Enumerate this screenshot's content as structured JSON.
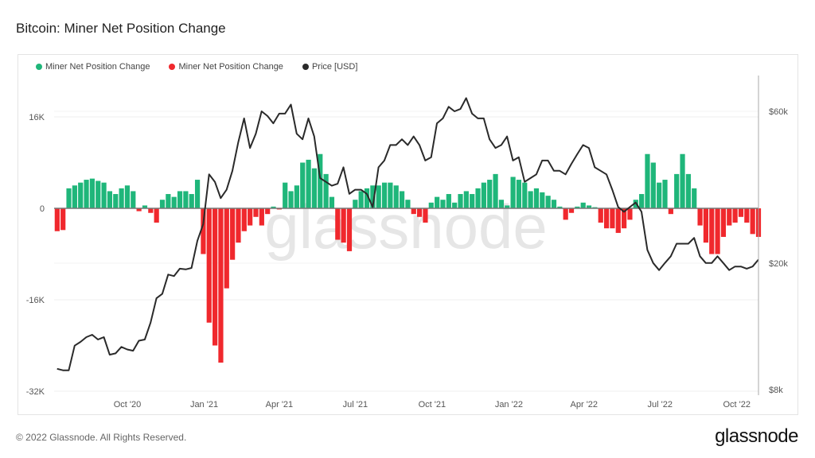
{
  "title": "Bitcoin: Miner Net Position Change",
  "footer": "© 2022 Glassnode. All Rights Reserved.",
  "logo": "glassnode",
  "watermark": "glassnode",
  "chart_data": {
    "type": "bar+line",
    "title": "Bitcoin: Miner Net Position Change",
    "legend": [
      {
        "label": "Miner Net Position Change",
        "color": "#1fb67a"
      },
      {
        "label": "Miner Net Position Change",
        "color": "#f0282d"
      },
      {
        "label": "Price [USD]",
        "color": "#2a2a2a"
      }
    ],
    "legend_position": "top-left",
    "grid": true,
    "x_ticks": [
      "Oct '20",
      "Jan '21",
      "Apr '21",
      "Jul '21",
      "Oct '21",
      "Jan '22",
      "Apr '22",
      "Jul '22",
      "Oct '22"
    ],
    "y_left": {
      "ticks": [
        "16K",
        "0",
        "-16K",
        "-32K"
      ],
      "range": [
        -32000,
        20000
      ]
    },
    "y_right": {
      "scale": "log",
      "ticks": [
        "$60k",
        "$20k",
        "$8k"
      ],
      "range": [
        8000,
        75000
      ]
    },
    "x": [
      "2020-07-06",
      "2020-07-13",
      "2020-07-20",
      "2020-07-27",
      "2020-08-03",
      "2020-08-10",
      "2020-08-17",
      "2020-08-24",
      "2020-08-31",
      "2020-09-07",
      "2020-09-14",
      "2020-09-21",
      "2020-09-28",
      "2020-10-05",
      "2020-10-12",
      "2020-10-19",
      "2020-10-26",
      "2020-11-02",
      "2020-11-09",
      "2020-11-16",
      "2020-11-23",
      "2020-11-30",
      "2020-12-07",
      "2020-12-14",
      "2020-12-21",
      "2020-12-28",
      "2021-01-04",
      "2021-01-11",
      "2021-01-18",
      "2021-01-25",
      "2021-02-01",
      "2021-02-08",
      "2021-02-15",
      "2021-02-22",
      "2021-03-01",
      "2021-03-08",
      "2021-03-15",
      "2021-03-22",
      "2021-03-29",
      "2021-04-05",
      "2021-04-12",
      "2021-04-19",
      "2021-04-26",
      "2021-05-03",
      "2021-05-10",
      "2021-05-17",
      "2021-05-24",
      "2021-05-31",
      "2021-06-07",
      "2021-06-14",
      "2021-06-21",
      "2021-06-28",
      "2021-07-05",
      "2021-07-12",
      "2021-07-19",
      "2021-07-26",
      "2021-08-02",
      "2021-08-09",
      "2021-08-16",
      "2021-08-23",
      "2021-08-30",
      "2021-09-06",
      "2021-09-13",
      "2021-09-20",
      "2021-09-27",
      "2021-10-04",
      "2021-10-11",
      "2021-10-18",
      "2021-10-25",
      "2021-11-01",
      "2021-11-08",
      "2021-11-15",
      "2021-11-22",
      "2021-11-29",
      "2021-12-06",
      "2021-12-13",
      "2021-12-20",
      "2021-12-27",
      "2022-01-03",
      "2022-01-10",
      "2022-01-17",
      "2022-01-24",
      "2022-01-31",
      "2022-02-07",
      "2022-02-14",
      "2022-02-21",
      "2022-02-28",
      "2022-03-07",
      "2022-03-14",
      "2022-03-21",
      "2022-03-28",
      "2022-04-04",
      "2022-04-11",
      "2022-04-18",
      "2022-04-25",
      "2022-05-02",
      "2022-05-09",
      "2022-05-16",
      "2022-05-23",
      "2022-05-30",
      "2022-06-06",
      "2022-06-13",
      "2022-06-20",
      "2022-06-27",
      "2022-07-04",
      "2022-07-11",
      "2022-07-18",
      "2022-07-25",
      "2022-08-01",
      "2022-08-08",
      "2022-08-15",
      "2022-08-22",
      "2022-08-29",
      "2022-09-05",
      "2022-09-12",
      "2022-09-19",
      "2022-09-26",
      "2022-10-03",
      "2022-10-10",
      "2022-10-17",
      "2022-10-24"
    ],
    "series": [
      {
        "name": "Miner Net Position Change",
        "values": [
          -4000,
          -3800,
          3500,
          4000,
          4500,
          5000,
          5200,
          4800,
          4500,
          3000,
          2500,
          3500,
          4000,
          3000,
          -500,
          500,
          -800,
          -2500,
          1500,
          2500,
          2000,
          3000,
          3000,
          2500,
          5000,
          -8000,
          -20000,
          -24000,
          -27000,
          -14000,
          -9000,
          -6000,
          -4000,
          -3000,
          -1500,
          -3000,
          -1000,
          300,
          -200,
          4500,
          3000,
          4000,
          8000,
          8500,
          7000,
          9500,
          6000,
          2000,
          -5500,
          -6000,
          -7500,
          1500,
          3000,
          3500,
          4000,
          4000,
          4500,
          4500,
          4000,
          3000,
          1500,
          -1000,
          -1500,
          -2500,
          1000,
          2000,
          1500,
          2500,
          1000,
          2500,
          3000,
          2500,
          3500,
          4500,
          5000,
          6000,
          1500,
          500,
          5500,
          5000,
          4500,
          3000,
          3500,
          2800,
          2200,
          1500,
          300,
          -2000,
          -800,
          300,
          1000,
          500,
          200,
          -2500,
          -3500,
          -3500,
          -4300,
          -3500,
          -2000,
          1500,
          2500,
          9500,
          8000,
          4500,
          5000,
          -1000,
          6000,
          9500,
          6000,
          3500,
          -3000,
          -6000,
          -8000,
          -8000,
          -5000,
          -3000,
          -2500,
          -1500,
          -2500,
          -4500,
          -5000
        ]
      },
      {
        "name": "Price [USD]",
        "values": [
          9300,
          9200,
          9200,
          11000,
          11300,
          11700,
          11900,
          11500,
          11700,
          10300,
          10400,
          10900,
          10700,
          10600,
          11400,
          11500,
          13000,
          15500,
          16000,
          18400,
          18200,
          19200,
          19100,
          19300,
          23500,
          26500,
          38000,
          36000,
          32000,
          34000,
          39000,
          48000,
          57000,
          46000,
          51000,
          60000,
          58000,
          55000,
          59000,
          59000,
          63000,
          51000,
          49000,
          57000,
          50000,
          37000,
          36000,
          35000,
          35500,
          40000,
          33000,
          34000,
          34000,
          33000,
          30000,
          40000,
          42000,
          47000,
          47000,
          49000,
          47000,
          50000,
          47000,
          42000,
          43000,
          55000,
          57000,
          62000,
          60000,
          61000,
          66000,
          59000,
          57000,
          57000,
          49000,
          46000,
          47000,
          50000,
          42000,
          43000,
          36000,
          37000,
          38000,
          42000,
          42000,
          39000,
          39000,
          38000,
          41000,
          44000,
          47000,
          46000,
          40000,
          39000,
          38000,
          34000,
          30000,
          29000,
          30000,
          31000,
          29000,
          22000,
          20000,
          19000,
          20000,
          21000,
          23000,
          23000,
          23000,
          24000,
          21000,
          20000,
          20000,
          21000,
          20000,
          19000,
          19500,
          19500,
          19200,
          19500,
          20500
        ]
      }
    ]
  }
}
